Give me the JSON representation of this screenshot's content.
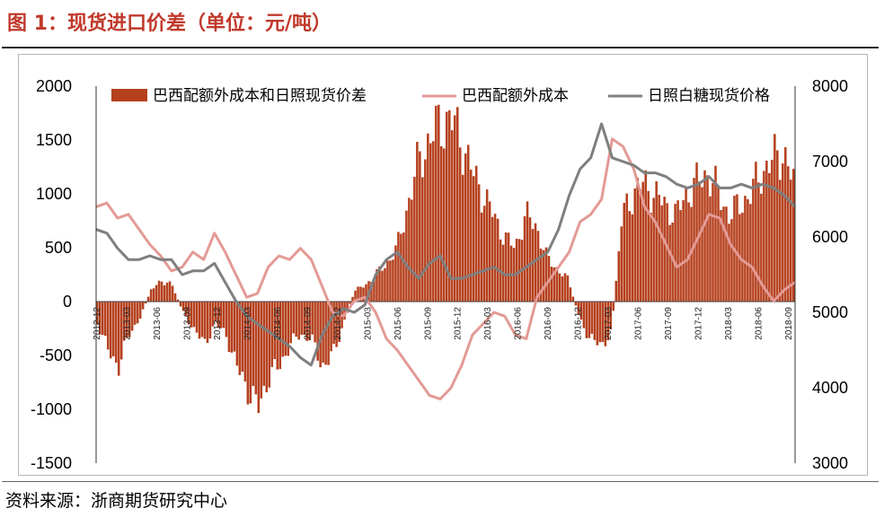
{
  "header": {
    "title": "图 1：现货进口价差（单位：元/吨）"
  },
  "footer": {
    "source": "资料来源：浙商期货研究中心"
  },
  "colors": {
    "spread": "#b5401e",
    "brazil": "#e39a95",
    "rizhao": "#7f7f7f",
    "title": "#c0392b"
  },
  "chart_data": {
    "type": "bar",
    "left_axis": {
      "ylim": [
        -1500,
        2000
      ],
      "ticks": [
        "2000",
        "1500",
        "1000",
        "500",
        "0",
        "-500",
        "-1000",
        "-1500"
      ]
    },
    "right_axis": {
      "ylim": [
        3000,
        8000
      ],
      "ticks": [
        "8000",
        "7000",
        "6000",
        "5000",
        "4000",
        "3000"
      ]
    },
    "legend": {
      "placement": "top"
    },
    "x_labels": [
      "2012-12",
      "2013-03",
      "2013-06",
      "2013-09",
      "2013-12",
      "2014-03",
      "2014-06",
      "2014-09",
      "2014-12",
      "2015-03",
      "2015-06",
      "2015-09",
      "2015-12",
      "2016-03",
      "2016-06",
      "2016-09",
      "2016-12",
      "2017-03",
      "2017-06",
      "2017-09",
      "2017-12",
      "2018-03",
      "2018-06",
      "2018-09"
    ],
    "series": [
      {
        "name": "巴西配额外成本和日照现货价差",
        "type": "bar",
        "axis": "left",
        "values": [
          -200,
          -450,
          -600,
          -300,
          -150,
          100,
          200,
          150,
          -100,
          -250,
          -400,
          -200,
          -300,
          -600,
          -800,
          -1000,
          -700,
          -600,
          -400,
          -300,
          -350,
          -600,
          -500,
          -200,
          100,
          150,
          250,
          350,
          500,
          900,
          1300,
          1500,
          1650,
          1700,
          1500,
          1200,
          1000,
          800,
          600,
          500,
          800,
          700,
          400,
          300,
          200,
          -150,
          -350,
          -400,
          -300,
          800,
          1000,
          1100,
          1000,
          900,
          800,
          1000,
          1100,
          1200,
          1000,
          800,
          900,
          1000,
          1200,
          1300,
          1400,
          1100
        ]
      },
      {
        "name": "巴西配额外成本",
        "type": "line",
        "axis": "right",
        "values": [
          6400,
          6450,
          6250,
          6300,
          6100,
          5900,
          5750,
          5550,
          5600,
          5800,
          5700,
          6050,
          5800,
          5500,
          5200,
          5250,
          5600,
          5750,
          5700,
          5850,
          5700,
          5350,
          5000,
          4950,
          5150,
          5200,
          5000,
          4650,
          4500,
          4300,
          4100,
          3900,
          3850,
          4000,
          4300,
          4700,
          4850,
          5000,
          4950,
          4700,
          4650,
          5200,
          5400,
          5600,
          5800,
          6200,
          6300,
          6500,
          7300,
          7200,
          6900,
          6400,
          6200,
          5900,
          5600,
          5700,
          6000,
          6300,
          6250,
          5900,
          5700,
          5600,
          5350,
          5150,
          5300,
          5400
        ]
      },
      {
        "name": "日照白糖现货价格",
        "type": "line",
        "axis": "right",
        "values": [
          6100,
          6050,
          5850,
          5700,
          5700,
          5750,
          5700,
          5700,
          5500,
          5550,
          5550,
          5650,
          5400,
          5150,
          4950,
          4850,
          4750,
          4650,
          4550,
          4400,
          4300,
          4700,
          4950,
          5050,
          5000,
          5100,
          5500,
          5700,
          5800,
          5600,
          5450,
          5650,
          5750,
          5450,
          5450,
          5500,
          5550,
          5600,
          5500,
          5500,
          5600,
          5700,
          5800,
          6100,
          6550,
          6900,
          7050,
          7500,
          7050,
          7000,
          6950,
          6850,
          6850,
          6800,
          6700,
          6650,
          6700,
          6800,
          6650,
          6650,
          6700,
          6650,
          6700,
          6650,
          6550,
          6400
        ]
      }
    ]
  }
}
